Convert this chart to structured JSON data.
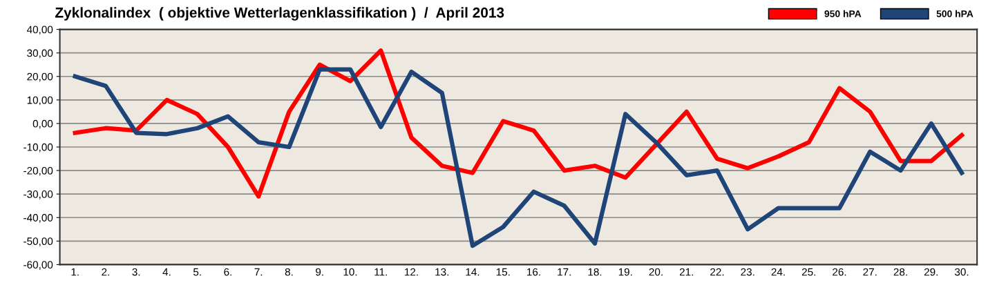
{
  "chart_data": {
    "type": "line",
    "title": "Zyklonalindex  ( objektive Wetterlagenklassifikation )  /  April 2013",
    "categories": [
      "1.",
      "2.",
      "3.",
      "4.",
      "5.",
      "6.",
      "7.",
      "8.",
      "9.",
      "10.",
      "11.",
      "12.",
      "13.",
      "14.",
      "15.",
      "16.",
      "17.",
      "18.",
      "19.",
      "20.",
      "21.",
      "22.",
      "23.",
      "24.",
      "25.",
      "26.",
      "27.",
      "28.",
      "29.",
      "30."
    ],
    "series": [
      {
        "name": "950 hPA",
        "color": "#ff0000",
        "values": [
          -4,
          -2,
          -3,
          10,
          4,
          -10,
          -31,
          5,
          25,
          18,
          31,
          -6,
          -18,
          -21,
          1,
          -3,
          -20,
          -18,
          -23,
          -9,
          5,
          -15,
          -19,
          -14,
          -8,
          15,
          5,
          -16,
          -16,
          -5
        ]
      },
      {
        "name": "500 hPA",
        "color": "#1f4478",
        "values": [
          20,
          16,
          -4,
          -4.5,
          -2,
          3,
          -8,
          -10,
          23,
          23,
          -1.5,
          22,
          13,
          -52,
          -44,
          -29,
          -35,
          -51,
          4,
          -8,
          -22,
          -20,
          -45,
          -36,
          -36,
          -36,
          -12,
          -20,
          0,
          -21
        ]
      }
    ],
    "ylim": [
      -60,
      40
    ],
    "yticks": [
      {
        "value": -60,
        "label": "-60,00"
      },
      {
        "value": -50,
        "label": "-50,00"
      },
      {
        "value": -40,
        "label": "-40,00"
      },
      {
        "value": -30,
        "label": "-30,00"
      },
      {
        "value": -20,
        "label": "-20,00"
      },
      {
        "value": -10,
        "label": "-10,00"
      },
      {
        "value": 0,
        "label": "0,00"
      },
      {
        "value": 10,
        "label": "10,00"
      },
      {
        "value": 20,
        "label": "20,00"
      },
      {
        "value": 30,
        "label": "30,00"
      },
      {
        "value": 40,
        "label": "40,00"
      }
    ],
    "grid": "y",
    "legend": "top right",
    "marker": "none",
    "line_style": "solid"
  }
}
